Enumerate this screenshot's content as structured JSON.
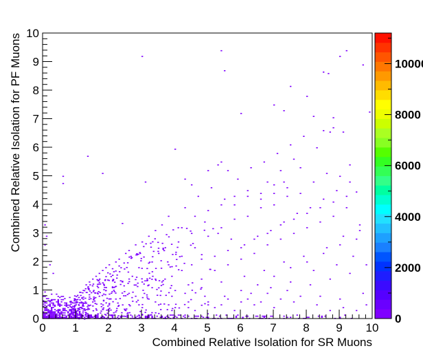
{
  "chart_data": {
    "type": "heatmap",
    "title": "",
    "xlabel": "Combined Relative Isolation for SR Muons",
    "ylabel": "Combined Relative Isolation for PF Muons",
    "xlim": [
      0,
      10
    ],
    "ylim": [
      0,
      10
    ],
    "x_ticks": [
      "0",
      "1",
      "2",
      "3",
      "4",
      "5",
      "6",
      "7",
      "8",
      "9",
      "10"
    ],
    "y_ticks": [
      "0",
      "1",
      "2",
      "3",
      "4",
      "5",
      "6",
      "7",
      "8",
      "9",
      "10"
    ],
    "colorbar": {
      "range": [
        0,
        11200
      ],
      "ticks": [
        "0",
        "2000",
        "4000",
        "6000",
        "8000",
        "10000"
      ],
      "colors": [
        "#7f00ff",
        "#6a00ff",
        "#5500ff",
        "#3b0bff",
        "#1e1eff",
        "#0033ff",
        "#0055ff",
        "#1a80ff",
        "#1ea0ff",
        "#22c0ff",
        "#22e0ff",
        "#00ffff",
        "#00ffd0",
        "#00ffa0",
        "#33ff88",
        "#33ff55",
        "#33ff22",
        "#55ff00",
        "#88ff22",
        "#aaff22",
        "#ccff00",
        "#eeff00",
        "#ffff00",
        "#ffdd00",
        "#ffbb00",
        "#ff9900",
        "#ff7700",
        "#ff5500",
        "#ff3300",
        "#ff1100"
      ]
    },
    "grid": false,
    "series": [
      {
        "marker_color": "#7f00ff",
        "dense_region": {
          "x": [
            0,
            1.2
          ],
          "y": [
            0,
            0.9
          ]
        },
        "points": [
          [
            0.05,
            2.6
          ],
          [
            0.1,
            2.9
          ],
          [
            0.05,
            3.3
          ],
          [
            0.2,
            1.9
          ],
          [
            0.3,
            1.6
          ],
          [
            0.6,
            4.75
          ],
          [
            0.6,
            5.0
          ],
          [
            1.35,
            5.7
          ],
          [
            1.8,
            5.1
          ],
          [
            2.4,
            3.35
          ],
          [
            3.0,
            9.2
          ],
          [
            3.1,
            4.8
          ],
          [
            4.0,
            5.95
          ],
          [
            5.5,
            8.7
          ],
          [
            5.4,
            9.4
          ],
          [
            6.0,
            7.2
          ],
          [
            7.0,
            7.5
          ],
          [
            7.3,
            7.3
          ],
          [
            7.5,
            8.15
          ],
          [
            8.0,
            7.8
          ],
          [
            8.2,
            7.1
          ],
          [
            8.5,
            8.65
          ],
          [
            8.65,
            8.6
          ],
          [
            9.2,
            9.4
          ],
          [
            9.0,
            9.2
          ],
          [
            9.7,
            8.9
          ],
          [
            9.9,
            7.25
          ],
          [
            8.8,
            7.05
          ],
          [
            9.0,
            5.0
          ],
          [
            9.5,
            4.45
          ],
          [
            9.6,
            3.3
          ],
          [
            9.3,
            5.4
          ],
          [
            8.5,
            6.6
          ],
          [
            8.7,
            6.55
          ],
          [
            8.8,
            6.7
          ],
          [
            8.3,
            6.0
          ],
          [
            9.1,
            6.55
          ],
          [
            7.8,
            5.3
          ],
          [
            7.6,
            5.6
          ],
          [
            7.2,
            5.2
          ],
          [
            6.8,
            4.8
          ],
          [
            7.0,
            4.7
          ],
          [
            7.3,
            4.8
          ],
          [
            6.6,
            4.4
          ],
          [
            6.2,
            4.3
          ],
          [
            5.8,
            4.0
          ],
          [
            5.5,
            4.2
          ],
          [
            5.3,
            5.4
          ],
          [
            5.4,
            5.5
          ],
          [
            5.6,
            5.2
          ],
          [
            5.0,
            5.2
          ],
          [
            4.5,
            4.7
          ],
          [
            4.3,
            4.9
          ],
          [
            3.8,
            3.6
          ],
          [
            3.6,
            3.3
          ],
          [
            3.4,
            3.1
          ],
          [
            3.2,
            2.9
          ],
          [
            3.0,
            2.7
          ],
          [
            2.8,
            2.6
          ],
          [
            2.6,
            2.4
          ],
          [
            2.5,
            2.3
          ],
          [
            2.3,
            2.1
          ],
          [
            2.2,
            2.0
          ],
          [
            2.0,
            1.9
          ],
          [
            1.9,
            1.8
          ],
          [
            1.8,
            1.7
          ],
          [
            1.7,
            1.6
          ],
          [
            1.6,
            1.5
          ],
          [
            1.5,
            1.4
          ],
          [
            1.4,
            1.3
          ],
          [
            1.3,
            1.2
          ],
          [
            2.6,
            0.9
          ],
          [
            3.0,
            1.3
          ],
          [
            3.4,
            1.4
          ],
          [
            3.8,
            1.9
          ],
          [
            4.2,
            2.2
          ],
          [
            4.6,
            2.5
          ],
          [
            5.0,
            2.9
          ],
          [
            5.4,
            3.2
          ],
          [
            5.8,
            3.5
          ],
          [
            6.2,
            3.6
          ],
          [
            6.6,
            3.9
          ],
          [
            7.0,
            4.0
          ],
          [
            7.4,
            4.3
          ],
          [
            7.8,
            4.4
          ],
          [
            8.2,
            4.8
          ],
          [
            8.6,
            5.1
          ],
          [
            4.0,
            1.0
          ],
          [
            4.4,
            1.2
          ],
          [
            4.8,
            1.4
          ],
          [
            5.2,
            1.7
          ],
          [
            5.6,
            1.9
          ],
          [
            6.0,
            2.1
          ],
          [
            6.4,
            2.3
          ],
          [
            6.8,
            2.6
          ],
          [
            7.2,
            2.8
          ],
          [
            7.6,
            3.0
          ],
          [
            8.0,
            3.2
          ],
          [
            8.4,
            3.4
          ],
          [
            8.8,
            3.6
          ],
          [
            9.2,
            3.9
          ],
          [
            6.0,
            1.0
          ],
          [
            6.5,
            1.2
          ],
          [
            7.0,
            1.5
          ],
          [
            7.5,
            1.8
          ],
          [
            8.0,
            2.0
          ],
          [
            8.5,
            2.3
          ],
          [
            9.0,
            2.6
          ],
          [
            9.5,
            2.8
          ],
          [
            5.0,
            0.6
          ],
          [
            5.5,
            0.8
          ],
          [
            6.2,
            0.7
          ],
          [
            6.8,
            0.9
          ],
          [
            7.4,
            1.0
          ],
          [
            8.1,
            1.2
          ],
          [
            8.7,
            1.4
          ],
          [
            9.3,
            1.6
          ],
          [
            9.8,
            1.9
          ],
          [
            9.7,
            0.9
          ],
          [
            9.0,
            0.7
          ],
          [
            8.3,
            0.5
          ],
          [
            7.6,
            0.6
          ],
          [
            7.0,
            0.4
          ],
          [
            6.4,
            0.5
          ],
          [
            5.8,
            0.3
          ],
          [
            5.2,
            0.4
          ],
          [
            4.6,
            0.3
          ],
          [
            4.0,
            0.4
          ],
          [
            3.5,
            0.5
          ],
          [
            3.0,
            0.4
          ],
          [
            2.5,
            0.3
          ],
          [
            2.0,
            0.5
          ],
          [
            1.5,
            0.6
          ],
          [
            4.5,
            3.0
          ],
          [
            4.9,
            3.4
          ],
          [
            5.3,
            3.0
          ],
          [
            5.7,
            2.8
          ],
          [
            6.1,
            2.6
          ],
          [
            6.5,
            2.9
          ],
          [
            6.9,
            3.1
          ],
          [
            7.3,
            3.4
          ],
          [
            7.7,
            3.7
          ],
          [
            8.1,
            3.9
          ],
          [
            8.5,
            4.2
          ],
          [
            8.9,
            4.5
          ],
          [
            9.3,
            4.8
          ],
          [
            3.7,
            2.5
          ],
          [
            4.1,
            2.7
          ],
          [
            4.3,
            3.9
          ],
          [
            4.7,
            4.3
          ],
          [
            5.1,
            4.6
          ],
          [
            5.9,
            4.9
          ],
          [
            6.3,
            5.3
          ],
          [
            6.7,
            5.5
          ],
          [
            7.1,
            5.8
          ],
          [
            7.5,
            6.1
          ],
          [
            7.9,
            6.4
          ],
          [
            2.9,
            1.8
          ],
          [
            3.3,
            2.0
          ],
          [
            3.5,
            2.3
          ],
          [
            2.7,
            1.5
          ],
          [
            2.4,
            1.3
          ],
          [
            2.1,
            1.1
          ],
          [
            1.9,
            1.0
          ],
          [
            3.9,
            0.8
          ],
          [
            4.3,
            0.9
          ],
          [
            4.8,
            1.1
          ],
          [
            5.4,
            1.3
          ],
          [
            6.1,
            1.5
          ],
          [
            6.7,
            1.7
          ],
          [
            7.3,
            2.0
          ],
          [
            7.9,
            2.2
          ],
          [
            8.6,
            2.5
          ],
          [
            9.1,
            2.9
          ],
          [
            9.6,
            3.1
          ],
          [
            9.4,
            2.2
          ],
          [
            8.9,
            1.9
          ],
          [
            8.2,
            1.7
          ],
          [
            7.5,
            1.3
          ],
          [
            6.9,
            1.1
          ],
          [
            6.3,
            0.9
          ],
          [
            5.6,
            0.7
          ],
          [
            5.0,
            0.5
          ],
          [
            4.4,
            0.6
          ],
          [
            3.8,
            0.5
          ],
          [
            3.2,
            0.7
          ],
          [
            2.8,
            0.8
          ],
          [
            2.2,
            0.7
          ],
          [
            1.7,
            0.8
          ],
          [
            4.2,
            3.2
          ],
          [
            4.6,
            3.6
          ],
          [
            5.0,
            3.8
          ],
          [
            5.4,
            4.0
          ],
          [
            5.8,
            4.3
          ],
          [
            6.2,
            4.5
          ],
          [
            6.6,
            4.2
          ],
          [
            7.0,
            4.4
          ],
          [
            7.4,
            4.6
          ],
          [
            5.2,
            2.2
          ],
          [
            5.6,
            2.4
          ],
          [
            6.0,
            2.5
          ],
          [
            6.4,
            2.8
          ],
          [
            6.8,
            3.0
          ],
          [
            7.2,
            3.3
          ],
          [
            7.6,
            3.5
          ],
          [
            8.0,
            3.7
          ],
          [
            8.4,
            3.9
          ],
          [
            8.8,
            4.1
          ],
          [
            9.2,
            4.3
          ],
          [
            3.3,
            1.1
          ],
          [
            3.6,
            1.3
          ],
          [
            3.9,
            1.5
          ],
          [
            4.2,
            1.7
          ],
          [
            4.5,
            1.9
          ],
          [
            4.8,
            2.1
          ],
          [
            9.8,
            0.5
          ],
          [
            9.5,
            0.3
          ],
          [
            9.1,
            0.4
          ],
          [
            8.7,
            0.3
          ],
          [
            8.4,
            0.8
          ],
          [
            7.8,
            0.8
          ],
          [
            7.2,
            0.7
          ],
          [
            6.6,
            0.6
          ],
          [
            6.0,
            0.6
          ],
          [
            5.4,
            0.5
          ],
          [
            4.9,
            0.8
          ],
          [
            4.4,
            0.4
          ],
          [
            3.9,
            0.3
          ],
          [
            3.4,
            0.6
          ],
          [
            2.9,
            0.5
          ]
        ]
      }
    ]
  }
}
